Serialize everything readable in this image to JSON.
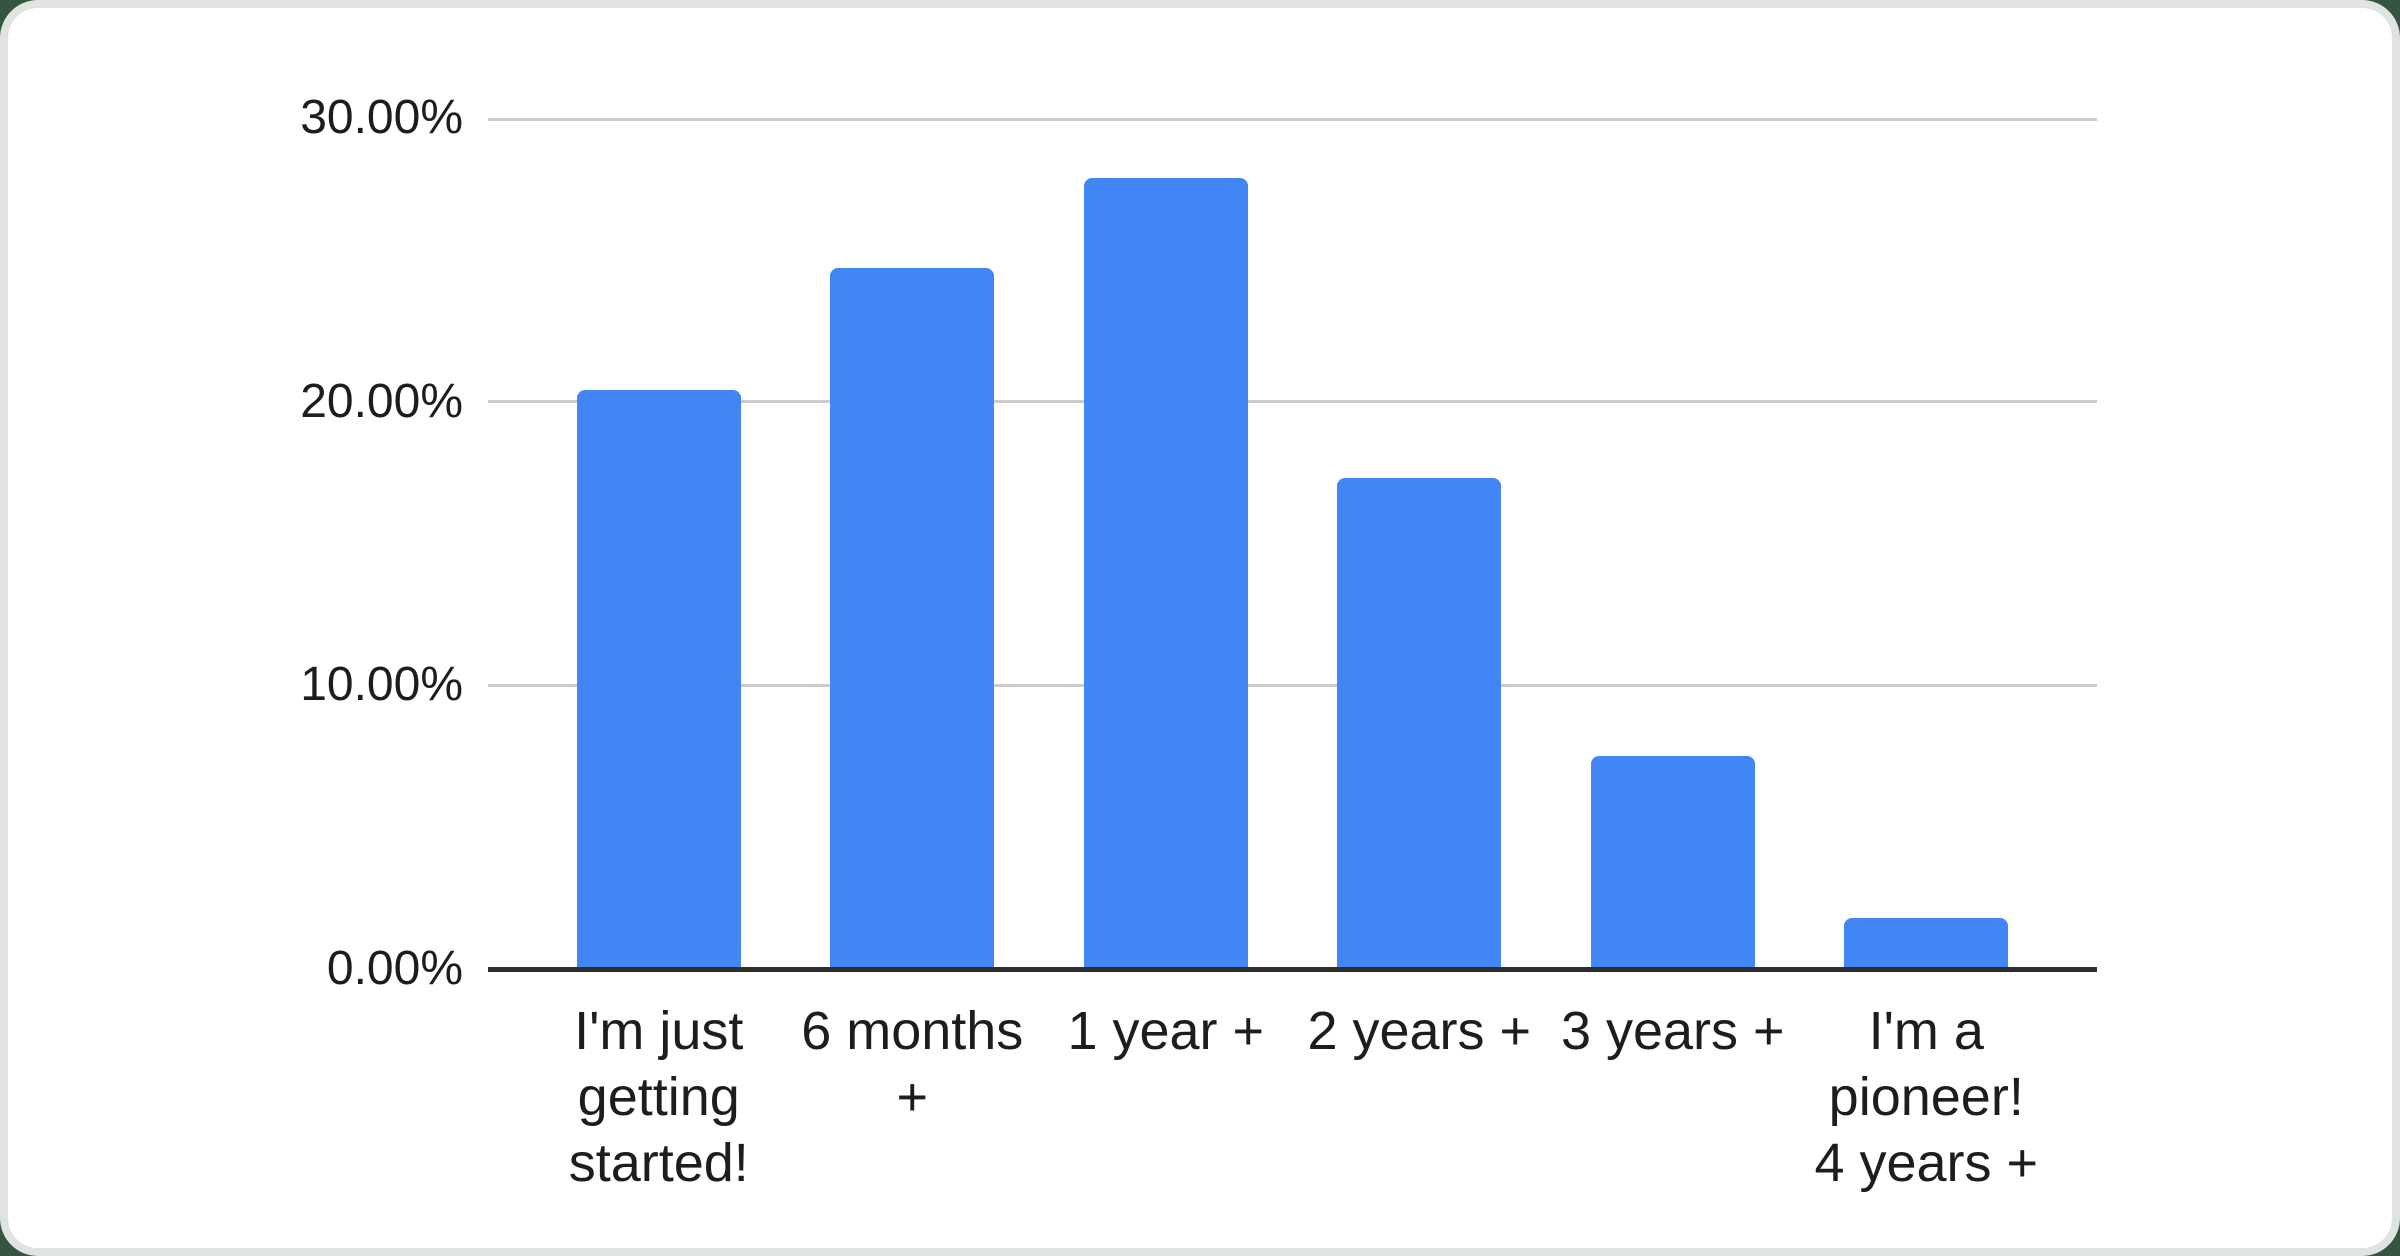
{
  "page": {
    "background_color": "#35543f",
    "card_background": "#ffffff",
    "card_shadow_color": "#dfe3e2"
  },
  "chart_data": {
    "type": "bar",
    "categories": [
      "I'm just getting started!",
      "6 months +",
      "1 year +",
      "2 years +",
      "3 years +",
      "I'm a pioneer! 4 years +"
    ],
    "values": [
      20.4,
      24.7,
      27.9,
      17.3,
      7.5,
      1.8
    ],
    "value_unit": "percent",
    "ylim": [
      0,
      30
    ],
    "y_ticks": [
      {
        "value": 0,
        "label": "0.00%"
      },
      {
        "value": 10,
        "label": "10.00%"
      },
      {
        "value": 20,
        "label": "20.00%"
      },
      {
        "value": 30,
        "label": "30.00%"
      }
    ],
    "grid": true,
    "legend": "none",
    "bar_color": "#4285f4",
    "axis_line_color": "#2e2e2e",
    "gridline_color": "#cccccc",
    "label_color": "#1d1d1d"
  }
}
